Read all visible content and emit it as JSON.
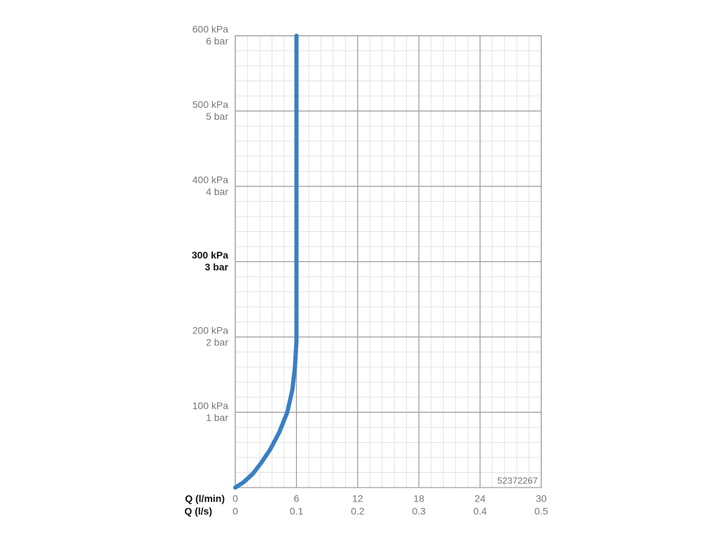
{
  "chart_data": {
    "type": "line",
    "x": [
      0,
      0.8,
      1.7,
      2.5,
      3.4,
      4.3,
      5.1,
      5.6,
      5.85,
      6,
      6
    ],
    "series": [
      {
        "color": "#3a7fc4",
        "values": [
          0,
          7,
          18,
          32,
          50,
          73,
          100,
          130,
          160,
          195,
          600
        ]
      }
    ],
    "xlim": [
      0,
      30
    ],
    "xticks": [
      0,
      6,
      12,
      18,
      24,
      30
    ],
    "xlabel": "Q (l/min)",
    "x2lim": [
      0,
      0.5
    ],
    "x2ticks": [
      0,
      0.1,
      0.2,
      0.3,
      0.4,
      0.5
    ],
    "x2label": "Q (l/s)",
    "ylim": [
      0,
      600
    ],
    "yticks": [
      {
        "value": 100,
        "label": "100 kPa"
      },
      {
        "value": 200,
        "label": "200 kPa"
      },
      {
        "value": 300,
        "label": "300 kPa"
      },
      {
        "value": 400,
        "label": "400 kPa"
      },
      {
        "value": 500,
        "label": "500 kPa"
      },
      {
        "value": 600,
        "label": "600 kPa"
      }
    ],
    "yticks_secondary": [
      {
        "value": 100,
        "label": "1 bar"
      },
      {
        "value": 200,
        "label": "2 bar"
      },
      {
        "value": 300,
        "label": "3 bar"
      },
      {
        "value": 400,
        "label": "4 bar"
      },
      {
        "value": 500,
        "label": "5 bar"
      },
      {
        "value": 600,
        "label": "6 bar"
      }
    ],
    "highlight_ytick": 300,
    "grid": true,
    "minor_divisions": 5,
    "annotation": "52372267"
  }
}
